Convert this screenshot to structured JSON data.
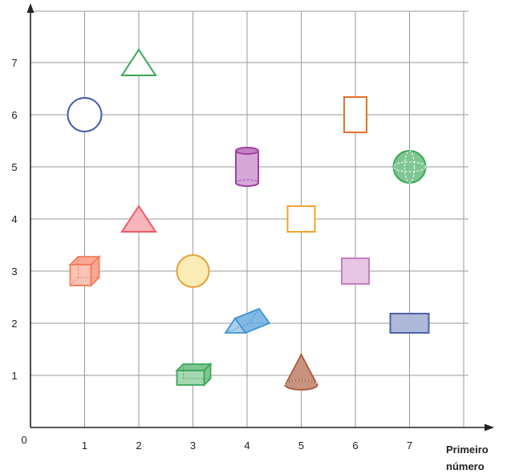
{
  "chart_data": {
    "type": "scatter",
    "title": "",
    "origin_label": "0",
    "xlabel_line1": "Primeiro",
    "xlabel_line2": "número",
    "ylabel": "",
    "xlim": [
      0,
      7.6
    ],
    "ylim": [
      0,
      7.8
    ],
    "x_ticks": [
      "1",
      "2",
      "3",
      "4",
      "5",
      "6",
      "7"
    ],
    "y_ticks": [
      "1",
      "2",
      "3",
      "4",
      "5",
      "6",
      "7"
    ],
    "grid": true,
    "points": [
      {
        "shape": "circle-outline",
        "x": 1,
        "y": 6,
        "color": "#3a5aa8"
      },
      {
        "shape": "triangle-outline",
        "x": 2,
        "y": 7,
        "color": "#3aa757"
      },
      {
        "shape": "rectangle-outline",
        "x": 6,
        "y": 6,
        "color": "#e8702a"
      },
      {
        "shape": "cylinder",
        "x": 4,
        "y": 5,
        "color": "#a23ea6"
      },
      {
        "shape": "sphere",
        "x": 7,
        "y": 5,
        "color": "#3aa757"
      },
      {
        "shape": "triangle-filled",
        "x": 2,
        "y": 4,
        "color": "#ef5b6a"
      },
      {
        "shape": "square-outline",
        "x": 5,
        "y": 4,
        "color": "#f3a32f"
      },
      {
        "shape": "cube",
        "x": 1,
        "y": 3,
        "color": "#f47a5a"
      },
      {
        "shape": "circle-filled",
        "x": 3,
        "y": 3,
        "color": "#f5d55a"
      },
      {
        "shape": "square-filled",
        "x": 6,
        "y": 3,
        "color": "#c87ec0"
      },
      {
        "shape": "triangular-prism",
        "x": 4,
        "y": 2,
        "color": "#3d94d4"
      },
      {
        "shape": "rectangle-filled",
        "x": 7,
        "y": 2,
        "color": "#4b62a8"
      },
      {
        "shape": "rectangular-prism",
        "x": 3,
        "y": 1,
        "color": "#3aa757"
      },
      {
        "shape": "cone",
        "x": 5,
        "y": 1,
        "color": "#a8593a"
      }
    ]
  }
}
